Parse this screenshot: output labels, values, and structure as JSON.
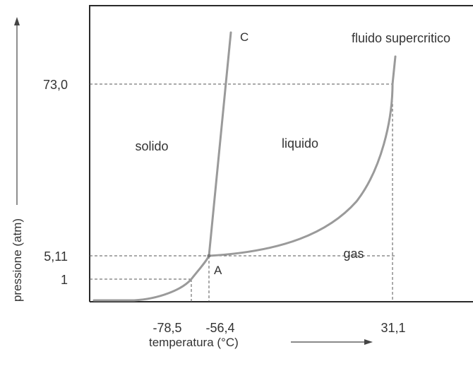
{
  "chart_data": {
    "type": "line",
    "xlabel": "temperatura (°C)",
    "ylabel": "pressione (atm)",
    "x_ticks": [
      "-78,5",
      "-56,4",
      "31,1"
    ],
    "y_ticks": [
      "73,0",
      "5,11",
      "1"
    ],
    "points": {
      "triple": {
        "label": "A",
        "t": -56.4,
        "p": 5.11
      },
      "critical": {
        "t": 31.1,
        "p": 73.0
      },
      "sublimation_1atm": {
        "t": -78.5,
        "p": 1
      },
      "fusion_end": {
        "label": "C"
      }
    },
    "regions": [
      "solido",
      "liquido",
      "gas",
      "fluido supercritico"
    ],
    "series": [
      {
        "name": "",
        "points": [
          [
            -85,
            0
          ],
          [
            -80,
            0.6
          ],
          [
            -78.5,
            1
          ],
          [
            -65,
            2.6
          ],
          [
            -56.4,
            5.11
          ]
        ]
      },
      {
        "name": "",
        "points": [
          [
            -56.4,
            5.11
          ],
          [
            -20,
            8
          ],
          [
            0,
            15
          ],
          [
            20,
            40
          ],
          [
            31.1,
            73.0
          ]
        ]
      },
      {
        "name": "",
        "points": [
          [
            -56.4,
            5.11
          ],
          [
            -45,
            85
          ]
        ]
      }
    ],
    "grid": false,
    "axis_breaks": "non-linear"
  }
}
